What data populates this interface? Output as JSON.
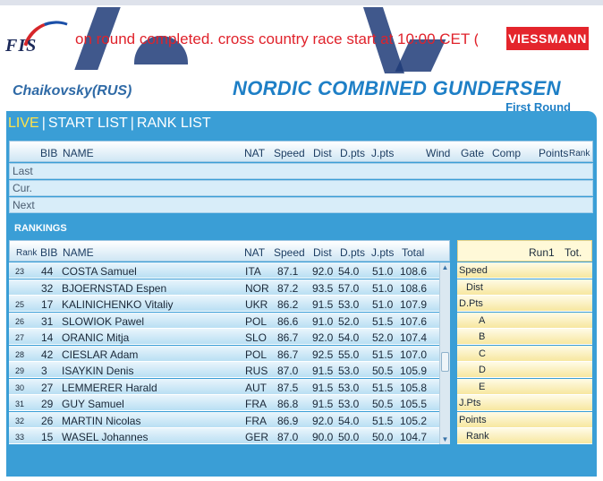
{
  "header": {
    "ticker": "on round completed. cross country race start at 10:00 CET (",
    "sponsor": "VIESSMANN",
    "logo_text": "FIS",
    "venue": "Chaikovsky(RUS)",
    "event_title": "NORDIC COMBINED GUNDERSEN",
    "round": "First Round"
  },
  "tabs": [
    {
      "label": "LIVE",
      "active": true
    },
    {
      "label": "START LIST",
      "active": false
    },
    {
      "label": "RANK LIST",
      "active": false
    }
  ],
  "live_columns": {
    "bib": "BIB",
    "name": "NAME",
    "nat": "NAT",
    "speed": "Speed",
    "dist": "Dist",
    "dpts": "D.pts",
    "jpts": "J.pts",
    "wind": "Wind",
    "gate": "Gate",
    "comp": "Comp",
    "points": "Points",
    "rank": "Rank"
  },
  "live_rows": [
    "Last",
    "Cur.",
    "Next"
  ],
  "rankings_label": "RANKINGS",
  "rank_columns": {
    "rank": "Rank",
    "bib": "BIB",
    "name": "NAME",
    "nat": "NAT",
    "speed": "Speed",
    "dist": "Dist",
    "dpts": "D.pts",
    "jpts": "J.pts",
    "total": "Total"
  },
  "rankings": [
    {
      "rank": "23",
      "bib": "44",
      "name": "COSTA Samuel",
      "nat": "ITA",
      "speed": "87.1",
      "dist": "92.0",
      "dpts": "54.0",
      "jpts": "51.0",
      "total": "108.6"
    },
    {
      "rank": "",
      "bib": "32",
      "name": "BJOERNSTAD Espen",
      "nat": "NOR",
      "speed": "87.2",
      "dist": "93.5",
      "dpts": "57.0",
      "jpts": "51.0",
      "total": "108.6"
    },
    {
      "rank": "25",
      "bib": "17",
      "name": "KALINICHENKO Vitaliy",
      "nat": "UKR",
      "speed": "86.2",
      "dist": "91.5",
      "dpts": "53.0",
      "jpts": "51.0",
      "total": "107.9"
    },
    {
      "rank": "26",
      "bib": "31",
      "name": "SLOWIOK Pawel",
      "nat": "POL",
      "speed": "86.6",
      "dist": "91.0",
      "dpts": "52.0",
      "jpts": "51.5",
      "total": "107.6"
    },
    {
      "rank": "27",
      "bib": "14",
      "name": "ORANIC Mitja",
      "nat": "SLO",
      "speed": "86.7",
      "dist": "92.0",
      "dpts": "54.0",
      "jpts": "52.0",
      "total": "107.4"
    },
    {
      "rank": "28",
      "bib": "42",
      "name": "CIESLAR Adam",
      "nat": "POL",
      "speed": "86.7",
      "dist": "92.5",
      "dpts": "55.0",
      "jpts": "51.5",
      "total": "107.0"
    },
    {
      "rank": "29",
      "bib": "3",
      "name": "ISAYKIN Denis",
      "nat": "RUS",
      "speed": "87.0",
      "dist": "91.5",
      "dpts": "53.0",
      "jpts": "50.5",
      "total": "105.9"
    },
    {
      "rank": "30",
      "bib": "27",
      "name": "LEMMERER Harald",
      "nat": "AUT",
      "speed": "87.5",
      "dist": "91.5",
      "dpts": "53.0",
      "jpts": "51.5",
      "total": "105.8"
    },
    {
      "rank": "31",
      "bib": "29",
      "name": "GUY Samuel",
      "nat": "FRA",
      "speed": "86.8",
      "dist": "91.5",
      "dpts": "53.0",
      "jpts": "50.5",
      "total": "105.5"
    },
    {
      "rank": "32",
      "bib": "26",
      "name": "MARTIN Nicolas",
      "nat": "FRA",
      "speed": "86.9",
      "dist": "92.0",
      "dpts": "54.0",
      "jpts": "51.5",
      "total": "105.2"
    },
    {
      "rank": "33",
      "bib": "15",
      "name": "WASEL Johannes",
      "nat": "GER",
      "speed": "87.0",
      "dist": "90.0",
      "dpts": "50.0",
      "jpts": "50.0",
      "total": "104.7"
    }
  ],
  "detail": {
    "col_run1": "Run1",
    "col_tot": "Tot.",
    "rows": [
      "Speed",
      "Dist",
      "D.Pts",
      "A",
      "B",
      "C",
      "D",
      "E",
      "J.Pts",
      "Points",
      "Rank"
    ]
  },
  "colors": {
    "panel": "#3a9ed6",
    "active_tab": "#ffe24a",
    "title": "#1e7fc6",
    "ticker": "#e0222b"
  }
}
